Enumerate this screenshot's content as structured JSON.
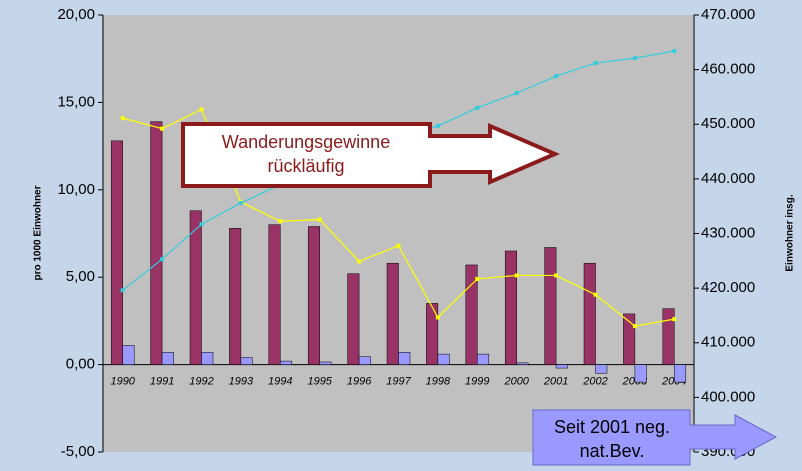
{
  "chart_data": {
    "type": "bar-line",
    "y_label": "pro 1000 Einwohner",
    "y2_label": "Einwohner insg.",
    "categories": [
      "1990",
      "1991",
      "1992",
      "1993",
      "1994",
      "1995",
      "1996",
      "1997",
      "1998",
      "1999",
      "2000",
      "2001",
      "2002",
      "2003",
      "2004"
    ],
    "series": [
      {
        "color": "#993366",
        "values": [
          12.8,
          13.9,
          8.8,
          7.8,
          8.0,
          7.9,
          5.2,
          5.8,
          3.5,
          5.7,
          6.5,
          6.7,
          5.8,
          2.9,
          3.2
        ]
      },
      {
        "color": "#9999ff",
        "values": [
          1.1,
          0.7,
          0.7,
          0.4,
          0.2,
          0.15,
          0.45,
          0.7,
          0.6,
          0.6,
          0.1,
          -0.2,
          -0.5,
          -1.0,
          -1.0
        ]
      },
      {
        "color": "#ffff00",
        "line": true,
        "values": [
          14.1,
          13.5,
          14.6,
          9.3,
          8.2,
          8.3,
          5.9,
          6.8,
          2.7,
          4.9,
          5.1,
          5.1,
          4.0,
          2.2,
          2.6
        ]
      },
      {
        "color": "#33ccdd",
        "line": true,
        "axis": "y2",
        "values": [
          419600,
          425300,
          431700,
          435600,
          438900,
          442500,
          445300,
          447500,
          449700,
          453000,
          455700,
          458800,
          461200,
          462100,
          463400
        ]
      }
    ],
    "ylim": [
      -5,
      20
    ],
    "yticks": [
      {
        "value": -5,
        "label": "-5,00"
      },
      {
        "value": 0,
        "label": "0,00"
      },
      {
        "value": 5,
        "label": "5,00"
      },
      {
        "value": 10,
        "label": "10,00"
      },
      {
        "value": 15,
        "label": "15,00"
      },
      {
        "value": 20,
        "label": "20,00"
      }
    ],
    "y2lim": [
      390000,
      470000
    ],
    "y2ticks": [
      {
        "value": 390000,
        "label": "390.000"
      },
      {
        "value": 400000,
        "label": "400.000"
      },
      {
        "value": 410000,
        "label": "410.000"
      },
      {
        "value": 420000,
        "label": "420.000"
      },
      {
        "value": 430000,
        "label": "430.000"
      },
      {
        "value": 440000,
        "label": "440.000"
      },
      {
        "value": 450000,
        "label": "450.000"
      },
      {
        "value": 460000,
        "label": "460.000"
      },
      {
        "value": 470000,
        "label": "470.000"
      }
    ],
    "annotations": [
      {
        "lines": [
          "Wanderungsgewinne",
          "rückläufig"
        ]
      },
      {
        "lines": [
          "Seit 2001 neg.",
          "nat.Bev."
        ]
      }
    ]
  }
}
